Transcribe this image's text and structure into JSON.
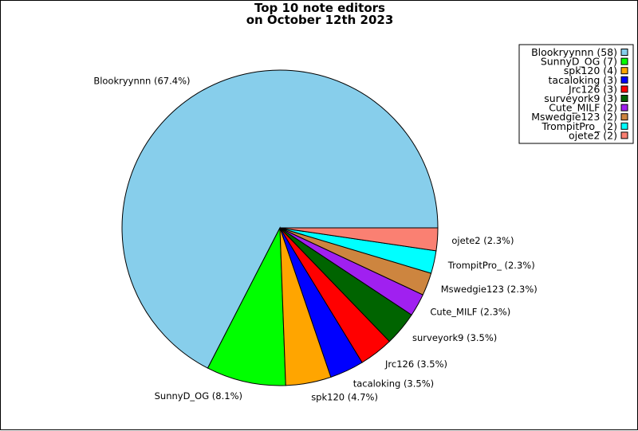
{
  "chart_data": {
    "type": "pie",
    "title_line1": "Top 10 note editors",
    "title_line2": "on October 12th 2023",
    "legend_position": "top-right",
    "slices": [
      {
        "name": "Blookryynnn",
        "value": 58,
        "percent_label": "67.4%",
        "color": "#87ceeb",
        "legend_label": "Blookryynnn (58)"
      },
      {
        "name": "SunnyD_OG",
        "value": 7,
        "percent_label": "8.1%",
        "color": "#00ff00",
        "legend_label": "SunnyD_OG (7)"
      },
      {
        "name": "spk120",
        "value": 4,
        "percent_label": "4.7%",
        "color": "#ffa500",
        "legend_label": "spk120 (4)"
      },
      {
        "name": "tacaloking",
        "value": 3,
        "percent_label": "3.5%",
        "color": "#0000ff",
        "legend_label": "tacaloking (3)"
      },
      {
        "name": "Jrc126",
        "value": 3,
        "percent_label": "3.5%",
        "color": "#ff0000",
        "legend_label": "Jrc126 (3)"
      },
      {
        "name": "surveyork9",
        "value": 3,
        "percent_label": "3.5%",
        "color": "#006400",
        "legend_label": "surveyork9 (3)"
      },
      {
        "name": "Cute_MILF",
        "value": 2,
        "percent_label": "2.3%",
        "color": "#a020f0",
        "legend_label": "Cute_MILF (2)"
      },
      {
        "name": "Mswedgie123",
        "value": 2,
        "percent_label": "2.3%",
        "color": "#cd853f",
        "legend_label": "Mswedgie123 (2)"
      },
      {
        "name": "TrompitPro_",
        "value": 2,
        "percent_label": "2.3%",
        "color": "#00ffff",
        "legend_label": "TrompitPro_ (2)"
      },
      {
        "name": "ojete2",
        "value": 2,
        "percent_label": "2.3%",
        "color": "#fa8072",
        "legend_label": "ojete2 (2)"
      }
    ]
  }
}
